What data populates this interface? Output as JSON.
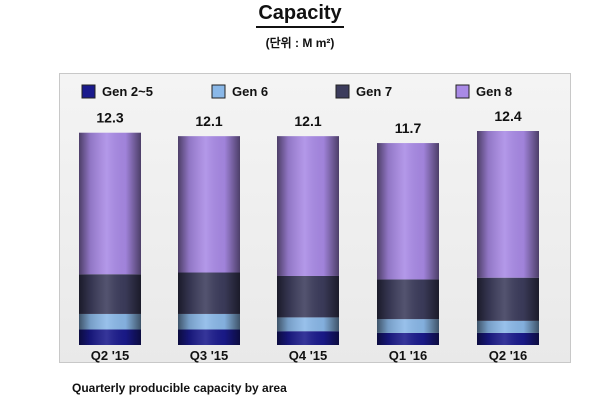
{
  "header": {
    "title": "Capacity",
    "unit": "(단위 : M m²)"
  },
  "footer": {
    "note": "Quarterly producible capacity by area"
  },
  "colors": {
    "Gen 2~5": "#1a1a8c",
    "Gen 6": "#8ab8e8",
    "Gen 7": "#3c3c5c",
    "Gen 8": "#a98ae6"
  },
  "chart_data": {
    "type": "bar",
    "stacked": true,
    "categories": [
      "Q2 '15",
      "Q3 '15",
      "Q4 '15",
      "Q1 '16",
      "Q2 '16"
    ],
    "series": [
      {
        "name": "Gen 2~5",
        "values": [
          0.9,
          0.9,
          0.8,
          0.7,
          0.7
        ]
      },
      {
        "name": "Gen 6",
        "values": [
          0.9,
          0.9,
          0.8,
          0.8,
          0.7
        ]
      },
      {
        "name": "Gen 7",
        "values": [
          2.3,
          2.4,
          2.4,
          2.3,
          2.5
        ]
      },
      {
        "name": "Gen 8",
        "values": [
          8.2,
          7.9,
          8.1,
          7.9,
          8.5
        ]
      }
    ],
    "totals": [
      12.3,
      12.1,
      12.1,
      11.7,
      12.4
    ],
    "title": "Capacity",
    "ylim": [
      0,
      12.4
    ],
    "legend_position": "top",
    "grid": false
  }
}
